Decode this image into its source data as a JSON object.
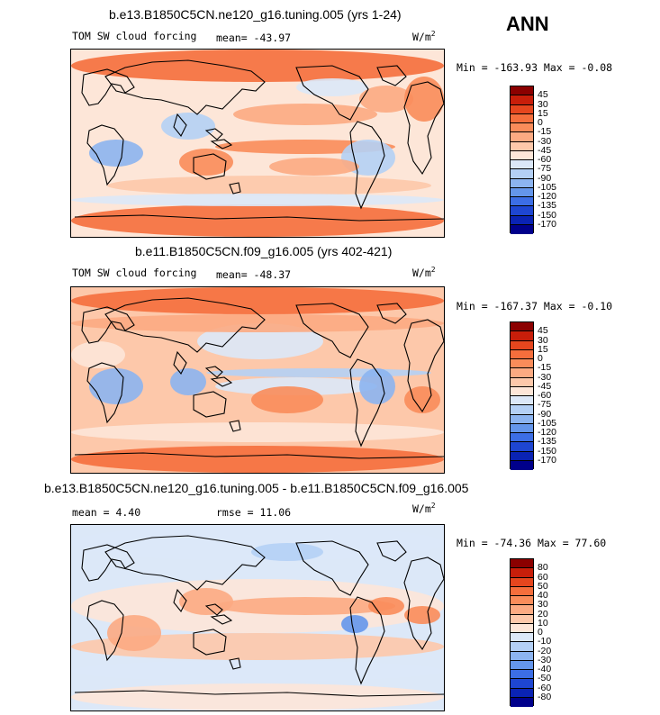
{
  "season": "ANN",
  "panels": [
    {
      "title": "b.e13.B1850C5CN.ne120_g16.tuning.005 (yrs 1-24)",
      "left_label": "TOM SW cloud forcing",
      "stat_label": "mean= -43.97",
      "rmse_label": "",
      "units": "W/m",
      "units_sup": "2",
      "minmax": "Min = -163.93 Max = -0.08",
      "colorbar": {
        "labels": [
          "45",
          "30",
          "15",
          "0",
          "-15",
          "-30",
          "-45",
          "-60",
          "-75",
          "-90",
          "-105",
          "-120",
          "-135",
          "-150",
          "-170"
        ],
        "colors": [
          "#8b0000",
          "#c81e0a",
          "#e6461e",
          "#f56e3c",
          "#fa8c5a",
          "#fcaa82",
          "#fdc8aa",
          "#fde6d8",
          "#dce8f8",
          "#b4d0f5",
          "#8cb4f0",
          "#6496eb",
          "#3c6ee6",
          "#1e46d2",
          "#0a23b4",
          "#00008b"
        ]
      },
      "map_style": "model1"
    },
    {
      "title": "b.e11.B1850C5CN.f09_g16.005 (yrs 402-421)",
      "left_label": "TOM SW cloud forcing",
      "stat_label": "mean= -48.37",
      "rmse_label": "",
      "units": "W/m",
      "units_sup": "2",
      "minmax": "Min = -167.37 Max = -0.10",
      "colorbar": {
        "labels": [
          "45",
          "30",
          "15",
          "0",
          "-15",
          "-30",
          "-45",
          "-60",
          "-75",
          "-90",
          "-105",
          "-120",
          "-135",
          "-150",
          "-170"
        ],
        "colors": [
          "#8b0000",
          "#c81e0a",
          "#e6461e",
          "#f56e3c",
          "#fa8c5a",
          "#fcaa82",
          "#fdc8aa",
          "#fde6d8",
          "#dce8f8",
          "#b4d0f5",
          "#8cb4f0",
          "#6496eb",
          "#3c6ee6",
          "#1e46d2",
          "#0a23b4",
          "#00008b"
        ]
      },
      "map_style": "model2"
    },
    {
      "title": "b.e13.B1850C5CN.ne120_g16.tuning.005 - b.e11.B1850C5CN.f09_g16.005",
      "left_label": "mean = 4.40",
      "stat_label": "rmse = 11.06",
      "rmse_label": "",
      "units": "W/m",
      "units_sup": "2",
      "minmax": "Min = -74.36 Max = 77.60",
      "colorbar": {
        "labels": [
          "80",
          "60",
          "50",
          "40",
          "30",
          "20",
          "10",
          "0",
          "-10",
          "-20",
          "-30",
          "-40",
          "-50",
          "-60",
          "-80"
        ],
        "colors": [
          "#8b0000",
          "#c81e0a",
          "#e6461e",
          "#f56e3c",
          "#fa8c5a",
          "#fcaa82",
          "#fdc8aa",
          "#fde6d8",
          "#dce8f8",
          "#b4d0f5",
          "#8cb4f0",
          "#6496eb",
          "#3c6ee6",
          "#1e46d2",
          "#0a23b4",
          "#00008b"
        ]
      },
      "map_style": "diff"
    }
  ],
  "icons": {
    "map": "world-map",
    "colorbar": "color-scale"
  }
}
